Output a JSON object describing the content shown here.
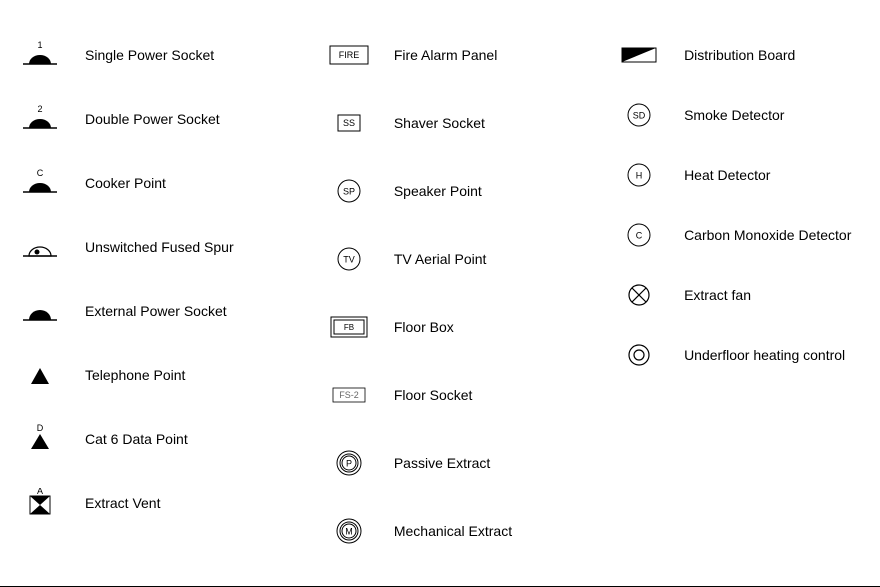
{
  "legend": {
    "col1": [
      {
        "label": "Single Power Socket",
        "symbol": "socket_1",
        "annot": "1"
      },
      {
        "label": "Double Power Socket",
        "symbol": "socket_2",
        "annot": "2"
      },
      {
        "label": "Cooker Point",
        "symbol": "socket_c",
        "annot": "C"
      },
      {
        "label": "Unswitched Fused Spur",
        "symbol": "fused_spur",
        "annot": ""
      },
      {
        "label": "External Power Socket",
        "symbol": "ext_socket",
        "annot": ""
      },
      {
        "label": "Telephone Point",
        "symbol": "triangle_up",
        "annot": ""
      },
      {
        "label": "Cat 6 Data Point",
        "symbol": "triangle_d",
        "annot": "D"
      },
      {
        "label": "Extract Vent",
        "symbol": "extract_vent",
        "annot": "A"
      }
    ],
    "col2": [
      {
        "label": "Fire Alarm Panel",
        "symbol": "rect_text",
        "text": "FIRE"
      },
      {
        "label": "Shaver Socket",
        "symbol": "small_rect",
        "text": "SS"
      },
      {
        "label": "Speaker Point",
        "symbol": "circle_text",
        "text": "SP"
      },
      {
        "label": "TV Aerial Point",
        "symbol": "circle_text",
        "text": "TV"
      },
      {
        "label": "Floor Box",
        "symbol": "dbl_rect",
        "text": "FB"
      },
      {
        "label": "Floor Socket",
        "symbol": "fs_rect",
        "text": "FS-2"
      },
      {
        "label": "Passive Extract",
        "symbol": "dbl_circle",
        "text": "P"
      },
      {
        "label": "Mechanical Extract",
        "symbol": "dbl_circle",
        "text": "M"
      }
    ],
    "col3": [
      {
        "label": "Distribution Board",
        "symbol": "dist_board",
        "text": ""
      },
      {
        "label": "Smoke Detector",
        "symbol": "circle_text",
        "text": "SD"
      },
      {
        "label": "Heat Detector",
        "symbol": "circle_text",
        "text": "H"
      },
      {
        "label": "Carbon Monoxide Detector",
        "symbol": "circle_text",
        "text": "C"
      },
      {
        "label": "Extract fan",
        "symbol": "circle_x",
        "text": ""
      },
      {
        "label": "Underfloor heating control",
        "symbol": "concentric",
        "text": ""
      }
    ]
  },
  "style": {
    "font_size_label": 14,
    "font_size_symbol_text": 9,
    "stroke": "#000000",
    "fill_black": "#000000",
    "fill_white": "#ffffff",
    "stroke_width": 1
  }
}
